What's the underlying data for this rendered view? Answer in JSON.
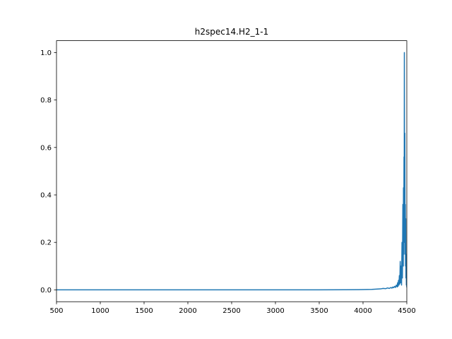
{
  "chart_data": {
    "type": "line",
    "title": "h2spec14.H2_1-1",
    "xlabel": "",
    "ylabel": "",
    "xlim": [
      500,
      4500
    ],
    "ylim": [
      -0.05,
      1.05
    ],
    "grid": false,
    "x_ticks": [
      500,
      1000,
      1500,
      2000,
      2500,
      3000,
      3500,
      4000,
      4500
    ],
    "x_tick_labels": [
      "500",
      "1000",
      "1500",
      "2000",
      "2500",
      "3000",
      "3500",
      "4000",
      "4500"
    ],
    "y_ticks": [
      0.0,
      0.2,
      0.4,
      0.6,
      0.8,
      1.0
    ],
    "y_tick_labels": [
      "0.0",
      "0.2",
      "0.4",
      "0.6",
      "0.8",
      "1.0"
    ],
    "series": [
      {
        "color": "#1f77b4",
        "x": [
          500,
          1000,
          1500,
          2000,
          2500,
          3000,
          3500,
          3800,
          4000,
          4100,
          4150,
          4200,
          4230,
          4260,
          4280,
          4300,
          4320,
          4330,
          4340,
          4350,
          4360,
          4370,
          4380,
          4390,
          4395,
          4400,
          4405,
          4410,
          4415,
          4420,
          4425,
          4430,
          4435,
          4440,
          4445,
          4450,
          4455,
          4460,
          4462,
          4465,
          4468,
          4470,
          4472,
          4475,
          4478,
          4480,
          4483,
          4485,
          4488,
          4490,
          4493,
          4495,
          4497,
          4500
        ],
        "y": [
          0,
          0,
          0,
          0,
          0,
          0,
          0,
          0.0005,
          0.001,
          0.002,
          0.003,
          0.004,
          0.006,
          0.005,
          0.008,
          0.006,
          0.01,
          0.007,
          0.012,
          0.009,
          0.015,
          0.01,
          0.02,
          0.012,
          0.03,
          0.015,
          0.04,
          0.02,
          0.06,
          0.025,
          0.12,
          0.03,
          0.1,
          0.02,
          0.2,
          0.05,
          0.36,
          0.1,
          0.43,
          0.15,
          0.56,
          0.2,
          1.0,
          0.3,
          0.66,
          0.15,
          0.36,
          0.1,
          0.3,
          0.05,
          0.15,
          0.02,
          0.05,
          0.01
        ]
      }
    ]
  }
}
